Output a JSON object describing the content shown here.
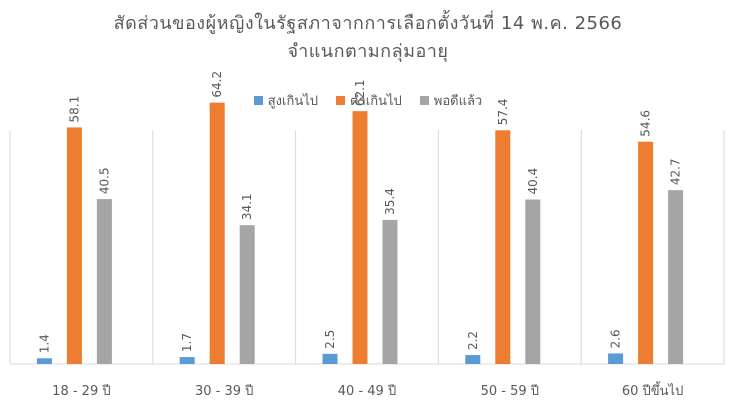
{
  "chart_data": {
    "type": "bar",
    "title": "สัดส่วนของผู้หญิงในรัฐสภาจากการเลือกตั้งวันที่ 14 พ.ค. 2566",
    "subtitle": "จำแนกตามกลุ่มอายุ",
    "categories": [
      "18 - 29 ปี",
      "30 - 39 ปี",
      "40 - 49 ปี",
      "50 - 59 ปี",
      "60 ปีขึ้นไป"
    ],
    "series": [
      {
        "name": "สูงเกินไป",
        "color": "#5B9BD5",
        "values": [
          1.4,
          1.7,
          2.5,
          2.2,
          2.6
        ]
      },
      {
        "name": "ต่ำเกินไป",
        "color": "#ED7D31",
        "values": [
          58.1,
          64.2,
          62.1,
          57.4,
          54.6
        ]
      },
      {
        "name": "พอดีแล้ว",
        "color": "#A5A5A5",
        "values": [
          40.5,
          34.1,
          35.4,
          40.4,
          42.7
        ]
      }
    ],
    "ylim": [
      0,
      70
    ],
    "legend_position": "top",
    "grid": "vertical-category-separators"
  }
}
